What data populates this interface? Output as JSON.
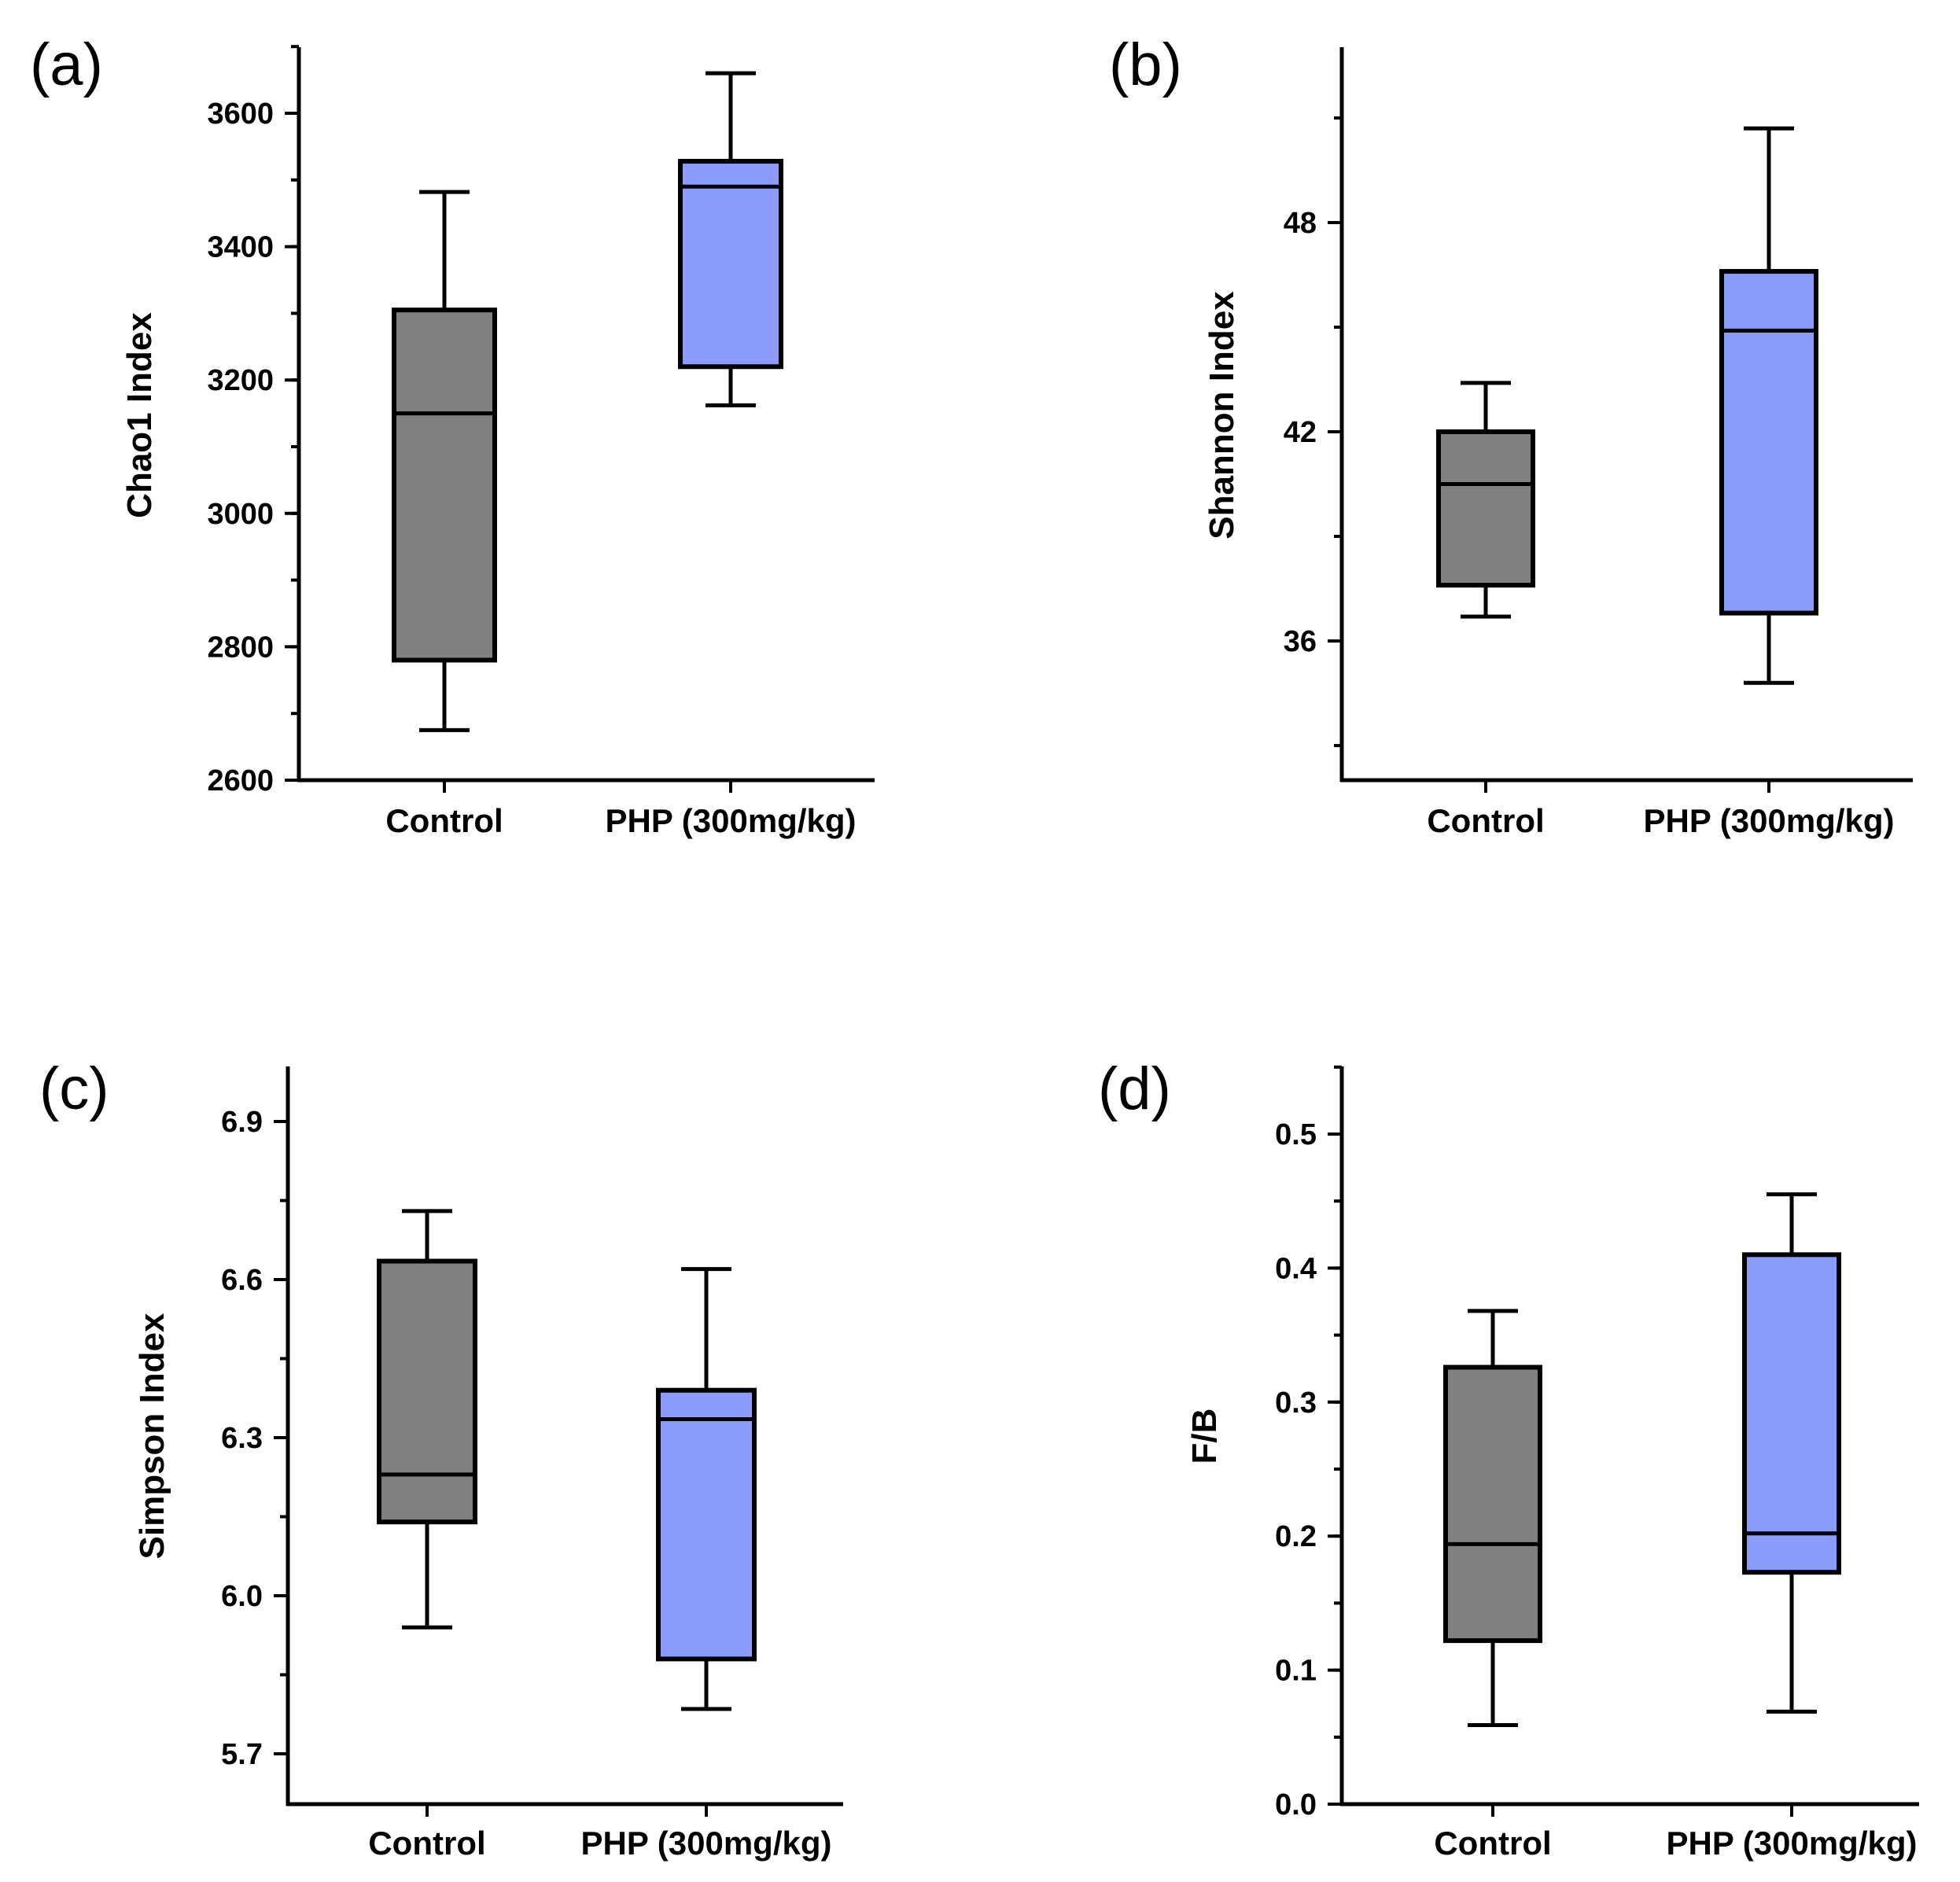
{
  "chart_data": [
    {
      "type": "box",
      "panel_label": "(a)",
      "ylabel": "Chao1 Index",
      "ylim": [
        2600,
        3700
      ],
      "yticks": [
        2600,
        2800,
        3000,
        3200,
        3400,
        3600
      ],
      "yticks_text": [
        "2600",
        "2800",
        "3000",
        "3200",
        "3400",
        "3600"
      ],
      "minor_step": 100,
      "categories": [
        "Control",
        "PHP (300mg/kg)"
      ],
      "boxes": [
        {
          "min": 2675,
          "q1": 2780,
          "median": 3150,
          "q3": 3305,
          "max": 3482,
          "color": "#808080"
        },
        {
          "min": 3162,
          "q1": 3220,
          "median": 3490,
          "q3": 3528,
          "max": 3660,
          "color": "#8c9cfc"
        }
      ]
    },
    {
      "type": "box",
      "panel_label": "(b)",
      "ylabel": "Shannon Index",
      "ylim": [
        32,
        53
      ],
      "yticks": [
        36,
        42,
        48
      ],
      "yticks_text": [
        "36",
        "42",
        "48"
      ],
      "minor_step": 3,
      "categories": [
        "Control",
        "PHP (300mg/kg)"
      ],
      "boxes": [
        {
          "min": 36.7,
          "q1": 37.6,
          "median": 40.5,
          "q3": 42.0,
          "max": 43.4,
          "color": "#808080"
        },
        {
          "min": 34.8,
          "q1": 36.8,
          "median": 44.9,
          "q3": 46.6,
          "max": 50.7,
          "color": "#8c9cfc"
        }
      ]
    },
    {
      "type": "box",
      "panel_label": "(c)",
      "ylabel": "Simpson Index",
      "ylim": [
        5.6,
        7.0
      ],
      "yticks": [
        5.7,
        6.0,
        6.3,
        6.6,
        6.9
      ],
      "yticks_text": [
        "5.7",
        "6.0",
        "6.3",
        "6.6",
        "6.9"
      ],
      "minor_step": 0.15,
      "categories": [
        "Control",
        "PHP (300mg/kg)"
      ],
      "boxes": [
        {
          "min": 5.94,
          "q1": 6.14,
          "median": 6.23,
          "q3": 6.635,
          "max": 6.73,
          "color": "#808080"
        },
        {
          "min": 5.785,
          "q1": 5.88,
          "median": 6.335,
          "q3": 6.39,
          "max": 6.62,
          "color": "#8c9cfc"
        }
      ]
    },
    {
      "type": "box",
      "panel_label": "(d)",
      "ylabel": "F/B",
      "ylim": [
        0.0,
        0.55
      ],
      "yticks": [
        0.0,
        0.1,
        0.2,
        0.3,
        0.4,
        0.5
      ],
      "yticks_text": [
        "0.0",
        "0.1",
        "0.2",
        "0.3",
        "0.4",
        "0.5"
      ],
      "minor_step": 0.05,
      "categories": [
        "Control",
        "PHP (300mg/kg)"
      ],
      "boxes": [
        {
          "min": 0.059,
          "q1": 0.122,
          "median": 0.194,
          "q3": 0.326,
          "max": 0.368,
          "color": "#808080"
        },
        {
          "min": 0.069,
          "q1": 0.173,
          "median": 0.202,
          "q3": 0.41,
          "max": 0.455,
          "color": "#8c9cfc"
        }
      ]
    }
  ]
}
